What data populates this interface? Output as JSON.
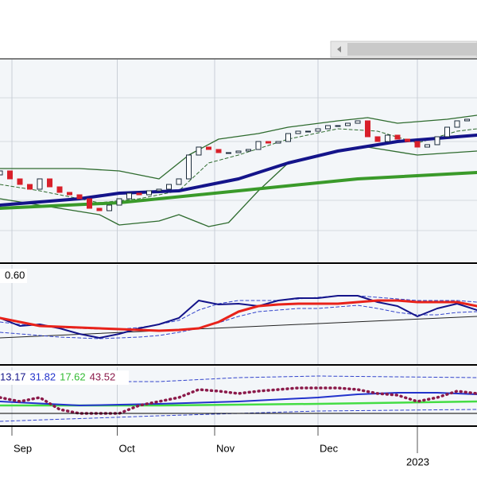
{
  "chart_data": [
    {
      "type": "candlestick",
      "xlim": [
        0,
        48
      ],
      "ylim": [
        0,
        255
      ],
      "up_color": "#ffffff",
      "down_color": "#d8202a",
      "outline_color": "#1a2a3a",
      "x": [
        0,
        1,
        2,
        3,
        4,
        5,
        6,
        7,
        8,
        9,
        10,
        11,
        12,
        13,
        14,
        15,
        16,
        17,
        18,
        19,
        20,
        21,
        22,
        23,
        24,
        25,
        26,
        27,
        28,
        29,
        30,
        31,
        32,
        33,
        34,
        35,
        36,
        37,
        38,
        39,
        40,
        41,
        42,
        43,
        44,
        45,
        46,
        47
      ],
      "open": [
        110,
        115,
        105,
        98,
        92,
        105,
        95,
        88,
        85,
        80,
        68,
        65,
        72,
        80,
        87,
        85,
        90,
        92,
        98,
        105,
        135,
        145,
        142,
        138,
        138,
        140,
        142,
        152,
        150,
        152,
        162,
        165,
        165,
        168,
        172,
        172,
        175,
        178,
        158,
        152,
        160,
        155,
        152,
        145,
        148,
        158,
        170,
        178
      ],
      "close": [
        115,
        105,
        98,
        92,
        105,
        95,
        88,
        85,
        80,
        68,
        65,
        72,
        80,
        87,
        85,
        90,
        92,
        98,
        105,
        135,
        145,
        142,
        138,
        138,
        140,
        142,
        152,
        150,
        152,
        162,
        165,
        165,
        168,
        172,
        172,
        175,
        178,
        158,
        152,
        160,
        155,
        152,
        145,
        148,
        158,
        170,
        178,
        180
      ],
      "series": [
        {
          "color": "#2e6b2e",
          "width": 1.3,
          "dash": "solid",
          "x": [
            0,
            8,
            12,
            16,
            19,
            22,
            26,
            29,
            34,
            37,
            40,
            45,
            48
          ],
          "values": [
            118,
            118,
            115,
            105,
            135,
            155,
            162,
            170,
            178,
            182,
            175,
            180,
            185
          ]
        },
        {
          "color": "#2e6b2e",
          "width": 1.3,
          "dash": "solid",
          "x": [
            0,
            10,
            12,
            16,
            18,
            21,
            23,
            26,
            29,
            34,
            37,
            42,
            48
          ],
          "values": [
            80,
            60,
            47,
            52,
            60,
            45,
            50,
            90,
            125,
            140,
            145,
            135,
            140
          ]
        },
        {
          "color": "#2e6b2e",
          "width": 1,
          "dash": "dashed",
          "x": [
            0,
            4,
            10,
            14,
            18,
            21,
            24,
            29,
            34,
            38,
            42,
            46,
            48
          ],
          "values": [
            98,
            90,
            75,
            80,
            90,
            125,
            135,
            155,
            168,
            165,
            150,
            165,
            168
          ]
        },
        {
          "color": "#3a9a2a",
          "width": 4,
          "dash": "solid",
          "x": [
            0,
            12,
            24,
            36,
            48
          ],
          "values": [
            68,
            75,
            90,
            105,
            113
          ]
        },
        {
          "color": "#14148a",
          "width": 4,
          "dash": "solid",
          "x": [
            0,
            8,
            12,
            18,
            24,
            29,
            34,
            40,
            48
          ],
          "values": [
            72,
            80,
            87,
            90,
            105,
            125,
            140,
            152,
            160
          ]
        }
      ]
    },
    {
      "type": "line",
      "label": "0.60",
      "xlim": [
        0,
        48
      ],
      "ylim": [
        0,
        125
      ],
      "series": [
        {
          "color": "#222222",
          "width": 1,
          "dash": "solid",
          "x": [
            0,
            48
          ],
          "values": [
            33,
            60
          ]
        },
        {
          "color": "#3344cc",
          "width": 1,
          "dash": "dashed",
          "x": [
            0,
            2,
            4,
            6,
            8,
            10,
            12,
            14,
            16,
            18,
            20,
            22,
            24,
            26,
            28,
            30,
            32,
            34,
            36,
            38,
            40,
            42,
            44,
            46,
            48
          ],
          "values": [
            53,
            50,
            48,
            46,
            45,
            44,
            44,
            46,
            50,
            55,
            68,
            76,
            80,
            80,
            80,
            82,
            84,
            86,
            86,
            84,
            82,
            80,
            80,
            80,
            78
          ]
        },
        {
          "color": "#3344cc",
          "width": 1,
          "dash": "dashed",
          "x": [
            0,
            2,
            4,
            6,
            8,
            10,
            12,
            14,
            16,
            18,
            20,
            22,
            24,
            26,
            28,
            30,
            32,
            34,
            36,
            38,
            40,
            42,
            44,
            46,
            48
          ],
          "values": [
            40,
            38,
            36,
            34,
            33,
            32,
            33,
            34,
            36,
            40,
            45,
            52,
            60,
            66,
            68,
            70,
            70,
            72,
            74,
            70,
            65,
            62,
            62,
            65,
            66
          ]
        },
        {
          "color": "#14148a",
          "width": 2,
          "dash": "solid",
          "x": [
            0,
            2,
            4,
            6,
            8,
            10,
            12,
            14,
            16,
            18,
            20,
            22,
            24,
            26,
            28,
            30,
            32,
            34,
            36,
            38,
            40,
            42,
            44,
            46,
            48
          ],
          "values": [
            58,
            48,
            50,
            45,
            38,
            33,
            38,
            45,
            50,
            58,
            80,
            75,
            76,
            73,
            80,
            83,
            83,
            86,
            86,
            78,
            73,
            60,
            70,
            76,
            68
          ]
        },
        {
          "color": "#e8221a",
          "width": 3,
          "dash": "solid",
          "x": [
            0,
            2,
            4,
            6,
            8,
            10,
            12,
            14,
            16,
            18,
            20,
            22,
            24,
            26,
            28,
            30,
            32,
            34,
            36,
            38,
            40,
            42,
            44,
            46,
            48
          ],
          "values": [
            58,
            53,
            48,
            47,
            46,
            45,
            44,
            43,
            42,
            43,
            45,
            53,
            66,
            73,
            75,
            76,
            76,
            76,
            78,
            80,
            80,
            78,
            78,
            78,
            73
          ]
        }
      ]
    },
    {
      "type": "line",
      "xlim": [
        0,
        48
      ],
      "ylim": [
        0,
        73
      ],
      "legend_values": [
        {
          "value": 13.17,
          "color": "#14148a"
        },
        {
          "value": 31.82,
          "color": "#2233cc"
        },
        {
          "value": 17.62,
          "color": "#33bb33"
        },
        {
          "value": 43.52,
          "color": "#8b1a4a"
        }
      ],
      "xticks": [
        {
          "value": 1.2,
          "label": "Sep"
        },
        {
          "value": 11.8,
          "label": "Oct"
        },
        {
          "value": 21.6,
          "label": "Nov"
        },
        {
          "value": 32,
          "label": "Dec"
        }
      ],
      "year_ticks": [
        {
          "value": 42,
          "label": "2023"
        }
      ],
      "series": [
        {
          "color": "#3344cc",
          "width": 1,
          "dash": "dashed",
          "x": [
            0,
            16,
            24,
            32,
            48
          ],
          "values": [
            55,
            55,
            60,
            62,
            60
          ]
        },
        {
          "color": "#3344cc",
          "width": 1,
          "dash": "dashed",
          "x": [
            0,
            16,
            32,
            48
          ],
          "values": [
            5,
            12,
            18,
            20
          ]
        },
        {
          "color": "#44dd44",
          "width": 2.5,
          "dash": "solid",
          "x": [
            0,
            16,
            32,
            48
          ],
          "values": [
            25,
            25,
            27,
            30
          ]
        },
        {
          "color": "#2233cc",
          "width": 2,
          "dash": "solid",
          "x": [
            0,
            8,
            16,
            24,
            32,
            36,
            40,
            44,
            48
          ],
          "values": [
            30,
            25,
            27,
            30,
            35,
            39,
            41,
            41,
            39
          ]
        },
        {
          "color": "#8b1a4a",
          "width": 3.5,
          "dash": "dotted",
          "x": [
            0,
            2,
            4,
            6,
            8,
            10,
            12,
            14,
            16,
            18,
            20,
            22,
            24,
            26,
            28,
            30,
            32,
            34,
            36,
            38,
            40,
            42,
            44,
            46,
            48
          ],
          "values": [
            35,
            30,
            35,
            20,
            15,
            15,
            15,
            25,
            30,
            35,
            45,
            43,
            40,
            43,
            45,
            47,
            47,
            47,
            45,
            40,
            38,
            30,
            35,
            43,
            40
          ]
        }
      ]
    }
  ]
}
